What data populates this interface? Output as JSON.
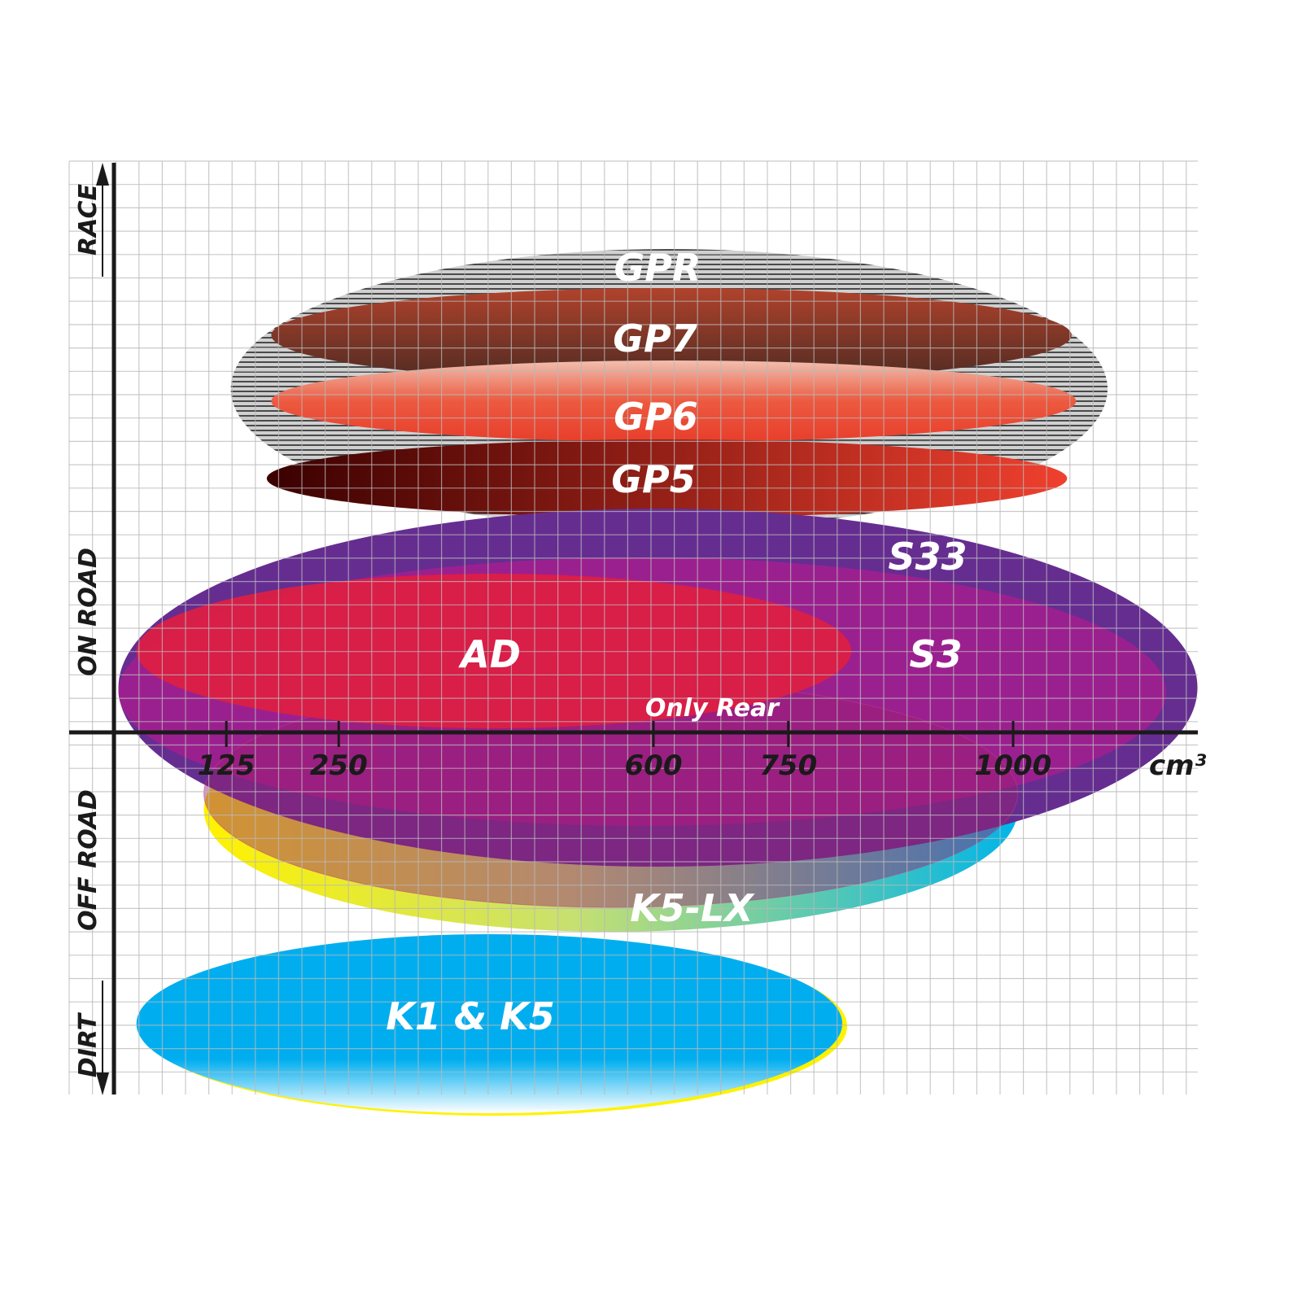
{
  "chart_data": {
    "type": "scatter",
    "xlabel": "cm³",
    "x_ticks": [
      "125",
      "250",
      "600",
      "750",
      "1000"
    ],
    "x_tick_values": [
      125,
      250,
      600,
      750,
      1000
    ],
    "y_labels": [
      "RACE",
      "ON ROAD",
      "OFF ROAD",
      "DIRT"
    ],
    "grid": true,
    "series": [
      {
        "name": "GPR",
        "cc_range": [
          130,
          1105
        ],
        "color": "#9a9a9a"
      },
      {
        "name": "GP7",
        "cc_range": [
          175,
          1065
        ],
        "color": "#8a3a2a"
      },
      {
        "name": "GP6",
        "cc_range": [
          175,
          1070
        ],
        "color": "#e8402e"
      },
      {
        "name": "GP5",
        "cc_range": [
          170,
          1060
        ],
        "color": "#b02418"
      },
      {
        "name": "S33",
        "cc_range": [
          5,
          1205
        ],
        "color": "#662d91"
      },
      {
        "name": "S3",
        "cc_range": [
          5,
          1170
        ],
        "color": "#a0208f"
      },
      {
        "name": "AD",
        "cc_range": [
          25,
          820
        ],
        "color": "#dc1f45"
      },
      {
        "name": "Only Rear",
        "cc_range": [
          100,
          1005
        ],
        "color": "#9a2070"
      },
      {
        "name": "K5-LX",
        "cc_range": [
          100,
          1005
        ],
        "color": "#00b5e8"
      },
      {
        "name": "K1 & K5",
        "cc_range": [
          25,
          810
        ],
        "color": "#00aeef"
      }
    ]
  }
}
